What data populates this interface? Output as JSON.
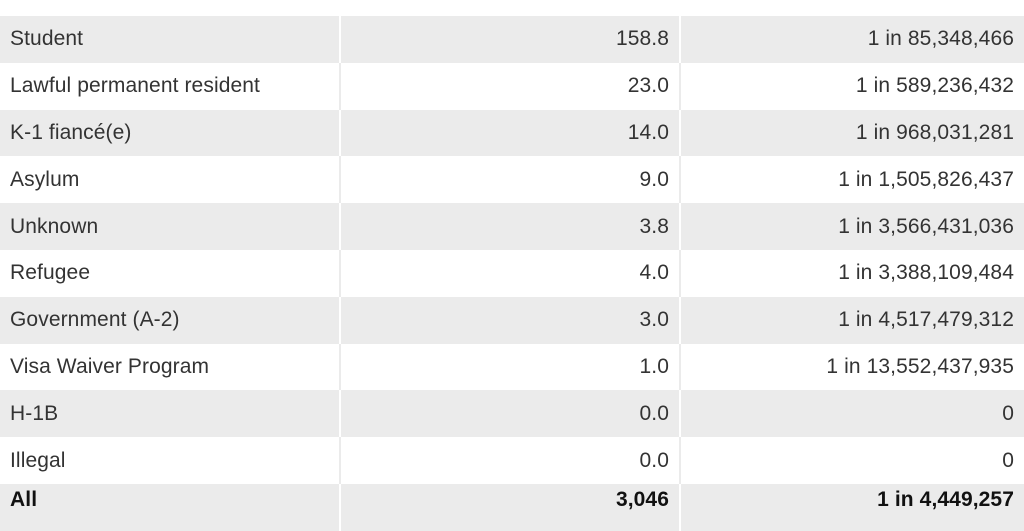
{
  "table": {
    "rows": [
      {
        "category": "Student",
        "value": "158.8",
        "odds": "1 in 85,348,466"
      },
      {
        "category": "Lawful permanent resident",
        "value": "23.0",
        "odds": "1 in 589,236,432"
      },
      {
        "category": "K-1 fiancé(e)",
        "value": "14.0",
        "odds": "1 in 968,031,281"
      },
      {
        "category": "Asylum",
        "value": "9.0",
        "odds": "1 in 1,505,826,437"
      },
      {
        "category": "Unknown",
        "value": "3.8",
        "odds": "1 in 3,566,431,036"
      },
      {
        "category": "Refugee",
        "value": "4.0",
        "odds": "1 in 3,388,109,484"
      },
      {
        "category": "Government (A-2)",
        "value": "3.0",
        "odds": "1 in 4,517,479,312"
      },
      {
        "category": "Visa Waiver Program",
        "value": "1.0",
        "odds": "1 in 13,552,437,935"
      },
      {
        "category": "H-1B",
        "value": "0.0",
        "odds": "0"
      },
      {
        "category": "Illegal",
        "value": "0.0",
        "odds": "0"
      }
    ],
    "total": {
      "category": "All",
      "value": "3,046",
      "odds": "1 in 4,449,257"
    }
  },
  "colors": {
    "row_shade": "#ebebeb",
    "row_plain": "#ffffff",
    "text": "#333333"
  }
}
